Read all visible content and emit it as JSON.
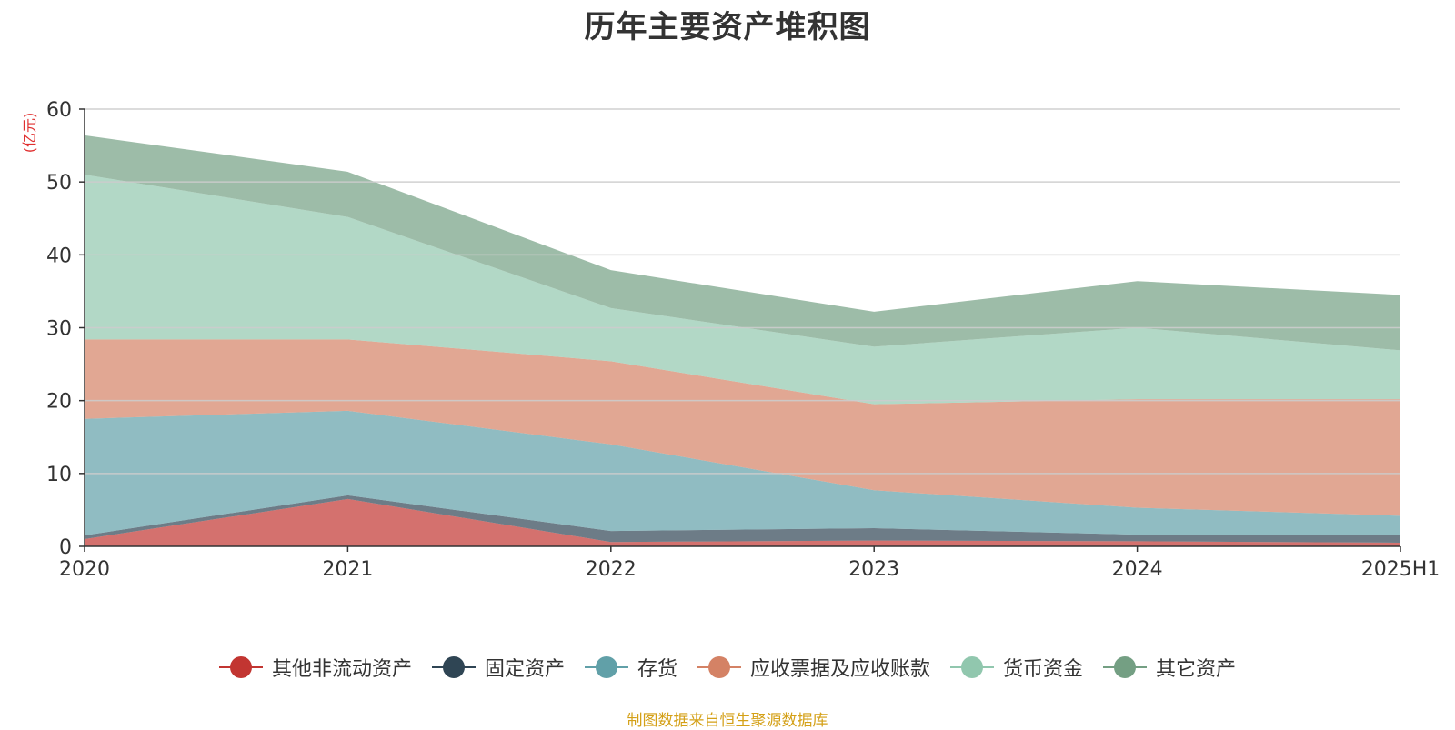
{
  "title": "历年主要资产堆积图",
  "source_note": "制图数据来自恒生聚源数据库",
  "chart_data": {
    "type": "area",
    "stacked": true,
    "title": "历年主要资产堆积图",
    "ylabel": "(亿元)",
    "xlabel": "",
    "categories": [
      "2020",
      "2021",
      "2022",
      "2023",
      "2024",
      "2025H1"
    ],
    "ylim": [
      0,
      60
    ],
    "yticks": [
      0,
      10,
      20,
      30,
      40,
      50,
      60
    ],
    "grid": true,
    "legend_position": "bottom",
    "series": [
      {
        "name": "其他非流动资产",
        "color": "#c23531",
        "values": [
          1.0,
          6.5,
          0.6,
          0.8,
          0.7,
          0.5
        ]
      },
      {
        "name": "固定资产",
        "color": "#2f4554",
        "values": [
          0.5,
          0.5,
          1.5,
          1.7,
          0.9,
          1.0
        ]
      },
      {
        "name": "存货",
        "color": "#61a0a8",
        "values": [
          16.0,
          11.6,
          11.9,
          5.2,
          3.7,
          2.7
        ]
      },
      {
        "name": "应收票据及应收账款",
        "color": "#d48265",
        "values": [
          10.9,
          9.8,
          11.4,
          11.8,
          14.9,
          16.0
        ]
      },
      {
        "name": "货币资金",
        "color": "#91c7ae",
        "values": [
          22.6,
          16.8,
          7.3,
          7.9,
          9.8,
          6.7
        ]
      },
      {
        "name": "其它资产",
        "color": "#749f83",
        "values": [
          5.4,
          6.2,
          5.2,
          4.8,
          6.4,
          7.6
        ]
      }
    ]
  }
}
